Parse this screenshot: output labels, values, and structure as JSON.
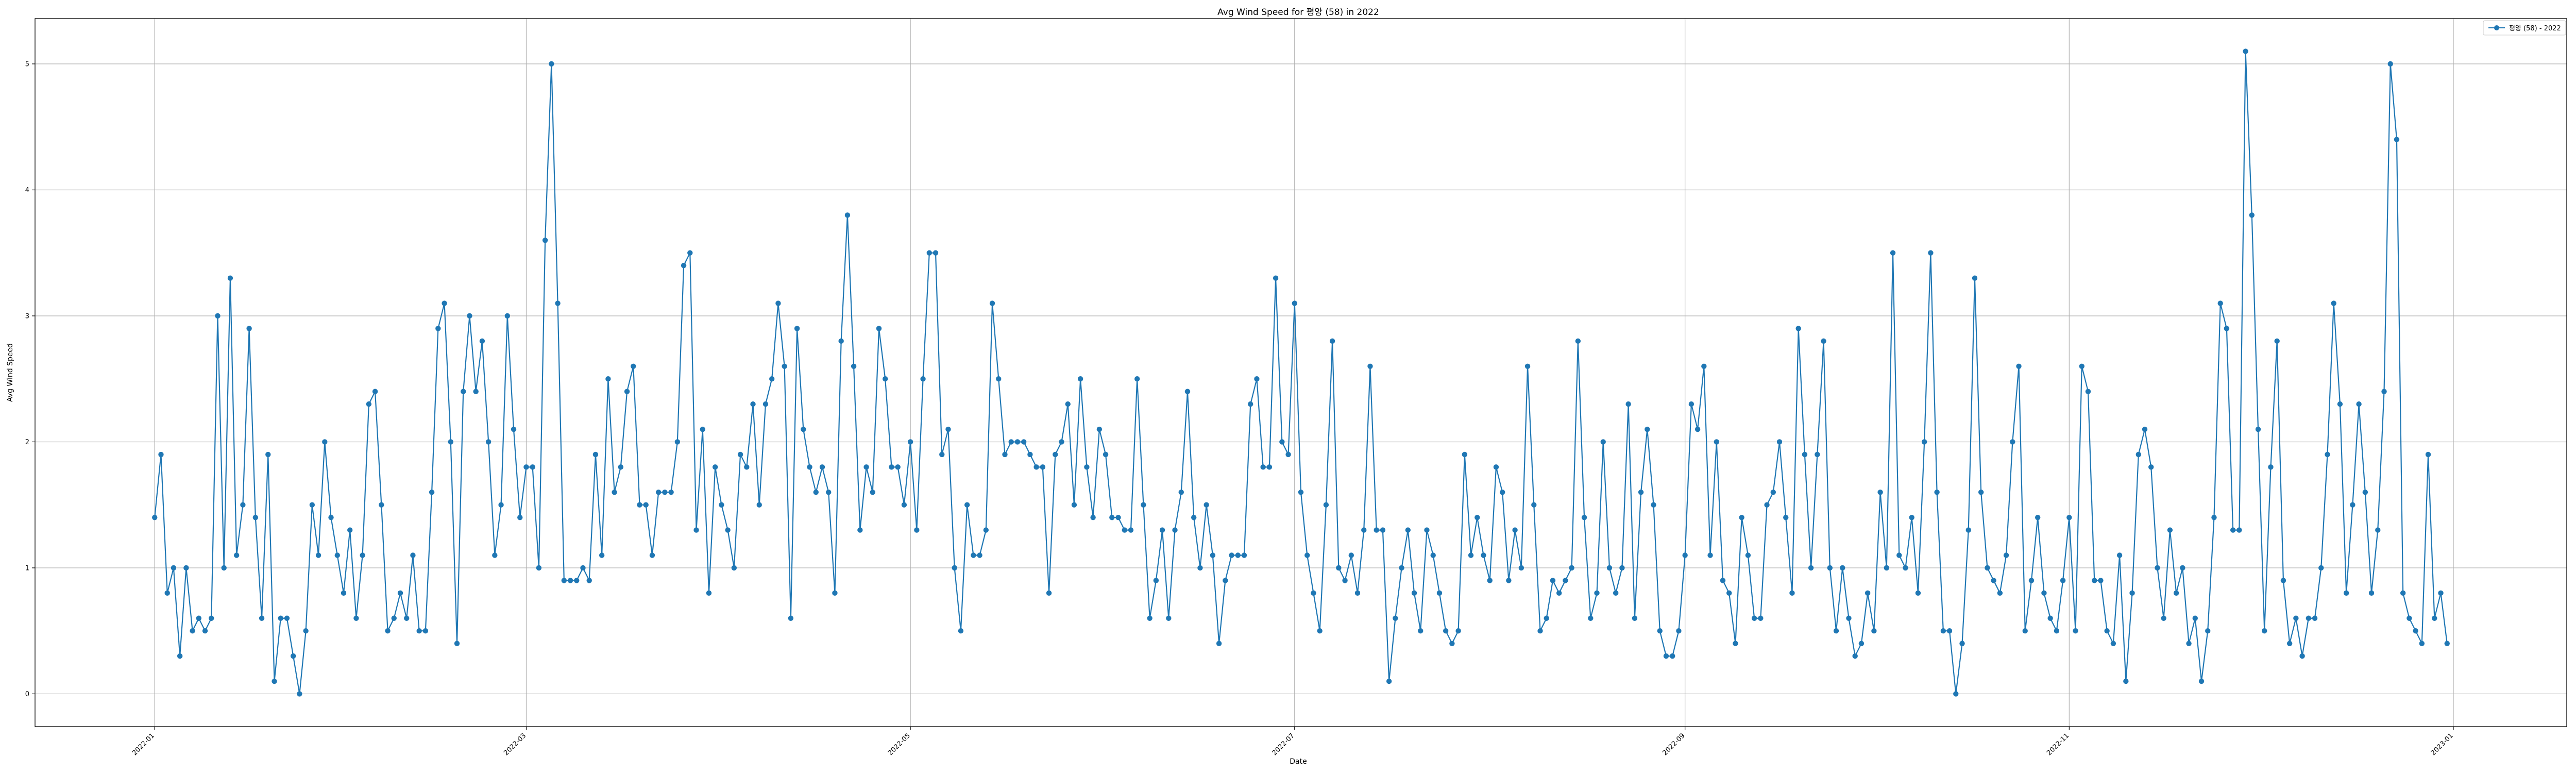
{
  "chart_data": {
    "type": "line",
    "title": "Avg Wind Speed for 평양 (58) in 2022",
    "xlabel": "Date",
    "ylabel": "Avg Wind Speed",
    "x_tick_labels": [
      "2022-01",
      "2022-03",
      "2022-05",
      "2022-07",
      "2022-09",
      "2022-11",
      "2023-01"
    ],
    "x_tick_dates": [
      "2022-01-01",
      "2022-03-01",
      "2022-05-01",
      "2022-07-01",
      "2022-09-01",
      "2022-11-01",
      "2023-01-01"
    ],
    "xlim": [
      "2021-12-13",
      "2023-01-19"
    ],
    "y_ticks": [
      0,
      1,
      2,
      3,
      4,
      5
    ],
    "ylim": [
      -0.26,
      5.36
    ],
    "grid": true,
    "legend_position": "top-right",
    "colors": {
      "line": "#1f77b4"
    },
    "series": [
      {
        "name": "평양 (58) - 2022",
        "x_start": "2022-01-01",
        "x_step_days": 1,
        "values": [
          1.4,
          1.9,
          0.8,
          1.0,
          0.3,
          1.0,
          0.5,
          0.6,
          0.5,
          0.6,
          3.0,
          1.0,
          3.3,
          1.1,
          1.5,
          2.9,
          1.4,
          0.6,
          1.9,
          0.1,
          0.6,
          0.6,
          0.3,
          0.0,
          0.5,
          1.5,
          1.1,
          2.0,
          1.4,
          1.1,
          0.8,
          1.3,
          0.6,
          1.1,
          2.3,
          2.4,
          1.5,
          0.5,
          0.6,
          0.8,
          0.6,
          1.1,
          0.5,
          0.5,
          1.6,
          2.9,
          3.1,
          2.0,
          0.4,
          2.4,
          3.0,
          2.4,
          2.8,
          2.0,
          1.1,
          1.5,
          3.0,
          2.1,
          1.4,
          1.8,
          1.8,
          1.0,
          3.6,
          5.0,
          3.1,
          0.9,
          0.9,
          0.9,
          1.0,
          0.9,
          1.9,
          1.1,
          2.5,
          1.6,
          1.8,
          2.4,
          2.6,
          1.5,
          1.5,
          1.1,
          1.6,
          1.6,
          1.6,
          2.0,
          3.4,
          3.5,
          1.3,
          2.1,
          0.8,
          1.8,
          1.5,
          1.3,
          1.0,
          1.9,
          1.8,
          2.3,
          1.5,
          2.3,
          2.5,
          3.1,
          2.6,
          0.6,
          2.9,
          2.1,
          1.8,
          1.6,
          1.8,
          1.6,
          0.8,
          2.8,
          3.8,
          2.6,
          1.3,
          1.8,
          1.6,
          2.9,
          2.5,
          1.8,
          1.8,
          1.5,
          2.0,
          1.3,
          2.5,
          3.5,
          3.5,
          1.9,
          2.1,
          1.0,
          0.5,
          1.5,
          1.1,
          1.1,
          1.3,
          3.1,
          2.5,
          1.9,
          2.0,
          2.0,
          2.0,
          1.9,
          1.8,
          1.8,
          0.8,
          1.9,
          2.0,
          2.3,
          1.5,
          2.5,
          1.8,
          1.4,
          2.1,
          1.9,
          1.4,
          1.4,
          1.3,
          1.3,
          2.5,
          1.5,
          0.6,
          0.9,
          1.3,
          0.6,
          1.3,
          1.6,
          2.4,
          1.4,
          1.0,
          1.5,
          1.1,
          0.4,
          0.9,
          1.1,
          1.1,
          1.1,
          2.3,
          2.5,
          1.8,
          1.8,
          3.3,
          2.0,
          1.9,
          3.1,
          1.6,
          1.1,
          0.8,
          0.5,
          1.5,
          2.8,
          1.0,
          0.9,
          1.1,
          0.8,
          1.3,
          2.6,
          1.3,
          1.3,
          0.1,
          0.6,
          1.0,
          1.3,
          0.8,
          0.5,
          1.3,
          1.1,
          0.8,
          0.5,
          0.4,
          0.5,
          1.9,
          1.1,
          1.4,
          1.1,
          0.9,
          1.8,
          1.6,
          0.9,
          1.3,
          1.0,
          2.6,
          1.5,
          0.5,
          0.6,
          0.9,
          0.8,
          0.9,
          1.0,
          2.8,
          1.4,
          0.6,
          0.8,
          2.0,
          1.0,
          0.8,
          1.0,
          2.3,
          0.6,
          1.6,
          2.1,
          1.5,
          0.5,
          0.3,
          0.3,
          0.5,
          1.1,
          2.3,
          2.1,
          2.6,
          1.1,
          2.0,
          0.9,
          0.8,
          0.4,
          1.4,
          1.1,
          0.6,
          0.6,
          1.5,
          1.6,
          2.0,
          1.4,
          0.8,
          2.9,
          1.9,
          1.0,
          1.9,
          2.8,
          1.0,
          0.5,
          1.0,
          0.6,
          0.3,
          0.4,
          0.8,
          0.5,
          1.6,
          1.0,
          3.5,
          1.1,
          1.0,
          1.4,
          0.8,
          2.0,
          3.5,
          1.6,
          0.5,
          0.5,
          0.0,
          0.4,
          1.3,
          3.3,
          1.6,
          1.0,
          0.9,
          0.8,
          1.1,
          2.0,
          2.6,
          0.5,
          0.9,
          1.4,
          0.8,
          0.6,
          0.5,
          0.9,
          1.4,
          0.5,
          2.6,
          2.4,
          0.9,
          0.9,
          0.5,
          0.4,
          1.1,
          0.1,
          0.8,
          1.9,
          2.1,
          1.8,
          1.0,
          0.6,
          1.3,
          0.8,
          1.0,
          0.4,
          0.6,
          0.1,
          0.5,
          1.4,
          3.1,
          2.9,
          1.3,
          1.3,
          5.1,
          3.8,
          2.1,
          0.5,
          1.8,
          2.8,
          0.9,
          0.4,
          0.6,
          0.3,
          0.6,
          0.6,
          1.0,
          1.9,
          3.1,
          2.3,
          0.8,
          1.5,
          2.3,
          1.6,
          0.8,
          1.3,
          2.4,
          5.0,
          4.4,
          0.8,
          0.6,
          0.5,
          0.4,
          1.9,
          0.6,
          0.8,
          0.4
        ]
      }
    ]
  }
}
